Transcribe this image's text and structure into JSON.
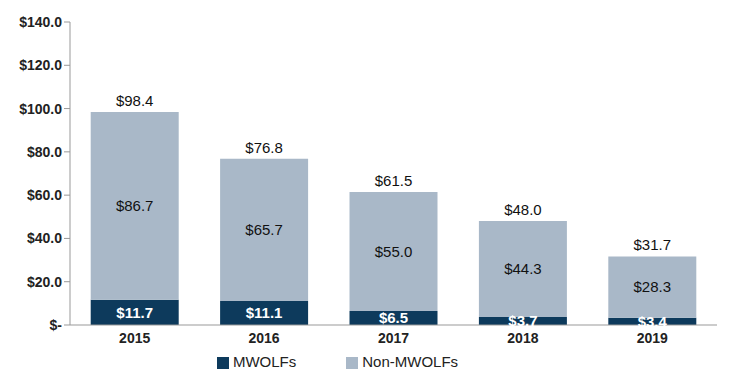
{
  "chart_data": {
    "type": "bar",
    "stacked": true,
    "categories": [
      "2015",
      "2016",
      "2017",
      "2018",
      "2019"
    ],
    "series": [
      {
        "name": "MWOLFs",
        "color": "#0d3a5c",
        "values": [
          11.7,
          11.1,
          6.5,
          3.7,
          3.4
        ],
        "value_labels": [
          "$11.7",
          "$11.1",
          "$6.5",
          "$3.7",
          "$3.4"
        ]
      },
      {
        "name": "Non-MWOLFs",
        "color": "#a9b8c8",
        "values": [
          86.7,
          65.7,
          55.0,
          44.3,
          28.3
        ],
        "value_labels": [
          "$86.7",
          "$65.7",
          "$55.0",
          "$44.3",
          "$28.3"
        ]
      }
    ],
    "totals": [
      98.4,
      76.8,
      61.5,
      48.0,
      31.7
    ],
    "total_labels": [
      "$98.4",
      "$76.8",
      "$61.5",
      "$48.0",
      "$31.7"
    ],
    "ylim": [
      0,
      140
    ],
    "yticks": [
      {
        "value": 0,
        "label": "$-"
      },
      {
        "value": 20,
        "label": "$20.0"
      },
      {
        "value": 40,
        "label": "$40.0"
      },
      {
        "value": 60,
        "label": "$60.0"
      },
      {
        "value": 80,
        "label": "$80.0"
      },
      {
        "value": 100,
        "label": "$100.0"
      },
      {
        "value": 120,
        "label": "$120.0"
      },
      {
        "value": 140,
        "label": "$140.0"
      }
    ],
    "grid": false,
    "legend": "bottom",
    "data_labels": true
  }
}
